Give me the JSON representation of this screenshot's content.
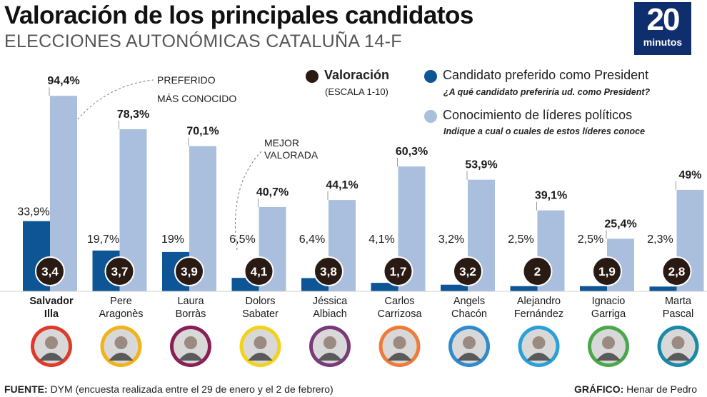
{
  "header": {
    "title": "Valoración de los principales candidatos",
    "subtitle": "ELECCIONES AUTONÓMICAS CATALUÑA 14-F",
    "logo_number": "20",
    "logo_word": "minutos"
  },
  "legend": {
    "valoracion": {
      "label": "Valoración",
      "sub": "(ESCALA 1-10)",
      "color": "#2a1a14"
    },
    "preferido": {
      "label": "Candidato preferido como President",
      "sub": "¿A qué candidato preferiría ud. como President?",
      "color": "#0d5595"
    },
    "conocimiento": {
      "label": "Conocimiento de líderes políticos",
      "sub": "Indique a cual o cuales de estos líderes conoce",
      "color": "#a9bfdd"
    }
  },
  "annotations": {
    "preferido": "PREFERIDO",
    "conocido": "MÁS CONOCIDO",
    "mejor_1": "MEJOR",
    "mejor_2": "VALORADA"
  },
  "chart_data": {
    "type": "bar",
    "categories": [
      "Salvador Illa",
      "Pere Aragonès",
      "Laura Borràs",
      "Dolors Sabater",
      "Jéssica Albiach",
      "Carlos Carrizosa",
      "Angels Chacón",
      "Alejandro Fernández",
      "Ignacio Garriga",
      "Marta Pascal"
    ],
    "first_names": [
      "Salvador",
      "Pere",
      "Laura",
      "Dolors",
      "Jéssica",
      "Carlos",
      "Angels",
      "Alejandro",
      "Ignacio",
      "Marta"
    ],
    "last_names": [
      "Illa",
      "Aragonès",
      "Borràs",
      "Sabater",
      "Albiach",
      "Carrizosa",
      "Chacón",
      "Fernández",
      "Garriga",
      "Pascal"
    ],
    "series": [
      {
        "name": "Candidato preferido como President",
        "values": [
          33.9,
          19.7,
          19,
          6.5,
          6.4,
          4.1,
          3.2,
          2.5,
          2.5,
          2.3
        ],
        "labels": [
          "33,9%",
          "19,7%",
          "19%",
          "6,5%",
          "6,4%",
          "4,1%",
          "3,2%",
          "2,5%",
          "2,5%",
          "2,3%"
        ],
        "color": "#0d5595"
      },
      {
        "name": "Conocimiento de líderes políticos",
        "values": [
          94.4,
          78.3,
          70.1,
          40.7,
          44.1,
          60.3,
          53.9,
          39.1,
          25.4,
          49
        ],
        "labels": [
          "94,4%",
          "78,3%",
          "70,1%",
          "40,7%",
          "44,1%",
          "60,3%",
          "53,9%",
          "39,1%",
          "25,4%",
          "49%"
        ],
        "color": "#a9bfdd"
      },
      {
        "name": "Valoración",
        "values": [
          3.4,
          3.7,
          3.9,
          4.1,
          3.8,
          1.7,
          3.2,
          2,
          1.9,
          2.8
        ],
        "labels": [
          "3,4",
          "3,7",
          "3,9",
          "4,1",
          "3,8",
          "1,7",
          "3,2",
          "2",
          "1,9",
          "2,8"
        ],
        "color": "#2a1a14"
      }
    ],
    "portrait_ring_colors": [
      "#e03a2a",
      "#f2b21a",
      "#8a1e55",
      "#f2d21a",
      "#7a3a7a",
      "#f07a3a",
      "#2f8ad0",
      "#2aa0d8",
      "#4aa84a",
      "#1a8aa8"
    ]
  },
  "footer": {
    "source_label": "FUENTE:",
    "source_text": "DYM (encuesta realizada entre el 29 de enero y el 2 de febrero)",
    "credit_label": "GRÁFICO:",
    "credit_text": "Henar de Pedro"
  }
}
